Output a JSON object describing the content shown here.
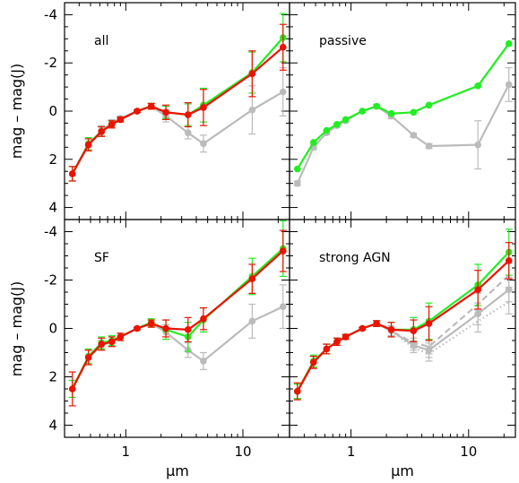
{
  "chart_data": {
    "type": "line",
    "xlabel": "μm",
    "ylabel": "mag – mag(J)",
    "xscale": "log",
    "xlim": [
      0.3,
      25
    ],
    "ylim": [
      -4.5,
      4.5
    ],
    "y_inverted": true,
    "xticks": [
      1,
      10
    ],
    "xtick_labels": [
      "1",
      "10"
    ],
    "yticks": [
      -4,
      -2,
      0,
      2,
      4
    ],
    "ytick_labels": [
      "-4",
      "-2",
      "0",
      "2",
      "4"
    ],
    "colors": {
      "green": "#22ee22",
      "red": "#ee1100",
      "gray": "#bbbbbb"
    },
    "panels": [
      {
        "title": "all",
        "position": "top-left",
        "series": [
          {
            "color": "gray",
            "style": "solid",
            "x": [
              0.35,
              0.48,
              0.62,
              0.76,
              0.9,
              1.25,
              1.65,
              2.2,
              3.4,
              4.6,
              12,
              22
            ],
            "y": [
              2.6,
              1.4,
              0.8,
              0.5,
              0.3,
              0.0,
              -0.2,
              0.2,
              0.9,
              1.35,
              -0.05,
              -0.8
            ],
            "err": [
              0.3,
              0.25,
              0.2,
              0.15,
              0.1,
              0.05,
              0.12,
              0.25,
              0.25,
              0.35,
              1.0,
              1.0
            ]
          },
          {
            "color": "green",
            "style": "solid",
            "x": [
              0.35,
              0.48,
              0.62,
              0.76,
              0.9,
              1.25,
              1.65,
              2.2,
              3.4,
              4.6,
              12,
              22
            ],
            "y": [
              2.6,
              1.35,
              0.85,
              0.55,
              0.35,
              0.0,
              -0.2,
              0.05,
              0.15,
              -0.25,
              -1.6,
              -3.05
            ],
            "err": [
              0.3,
              0.25,
              0.2,
              0.15,
              0.1,
              0.05,
              0.12,
              0.25,
              0.45,
              0.7,
              0.85,
              1.0
            ]
          },
          {
            "color": "red",
            "style": "solid",
            "x": [
              0.35,
              0.48,
              0.62,
              0.76,
              0.9,
              1.25,
              1.65,
              2.2,
              3.4,
              4.6,
              12,
              22
            ],
            "y": [
              2.6,
              1.4,
              0.85,
              0.55,
              0.35,
              0.0,
              -0.2,
              0.05,
              0.15,
              -0.15,
              -1.55,
              -2.65
            ],
            "err": [
              0.3,
              0.25,
              0.2,
              0.15,
              0.1,
              0.05,
              0.12,
              0.3,
              0.5,
              0.75,
              0.95,
              0.95
            ]
          }
        ]
      },
      {
        "title": "passive",
        "position": "top-right",
        "series": [
          {
            "color": "gray",
            "style": "solid",
            "x": [
              0.35,
              0.48,
              0.62,
              0.76,
              0.9,
              1.25,
              1.65,
              2.2,
              3.4,
              4.6,
              12,
              22
            ],
            "y": [
              3.0,
              1.5,
              0.9,
              0.6,
              0.4,
              0.0,
              -0.2,
              0.2,
              1.0,
              1.45,
              1.4,
              -1.1
            ],
            "err": [
              0.1,
              0.1,
              0.08,
              0.08,
              0.06,
              0.04,
              0.08,
              0.12,
              0.08,
              0.1,
              1.0,
              0.7
            ]
          },
          {
            "color": "green",
            "style": "solid",
            "x": [
              0.35,
              0.48,
              0.62,
              0.76,
              0.9,
              1.25,
              1.65,
              2.2,
              3.4,
              4.6,
              12,
              22
            ],
            "y": [
              2.4,
              1.3,
              0.8,
              0.55,
              0.35,
              0.0,
              -0.2,
              0.1,
              0.05,
              -0.25,
              -1.05,
              -2.8
            ],
            "err": [
              0.0,
              0.0,
              0.0,
              0.0,
              0.0,
              0.0,
              0.0,
              0.0,
              0.0,
              0.0,
              0.0,
              0.0
            ]
          }
        ]
      },
      {
        "title": "SF",
        "position": "bottom-left",
        "series": [
          {
            "color": "gray",
            "style": "solid",
            "x": [
              0.35,
              0.48,
              0.62,
              0.76,
              0.9,
              1.25,
              1.65,
              2.2,
              3.4,
              4.6,
              12,
              22
            ],
            "y": [
              2.5,
              1.2,
              0.7,
              0.55,
              0.35,
              0.0,
              -0.2,
              0.15,
              0.9,
              1.35,
              -0.3,
              -0.9
            ],
            "err": [
              0.35,
              0.3,
              0.2,
              0.2,
              0.15,
              0.05,
              0.15,
              0.3,
              0.3,
              0.35,
              0.7,
              0.9
            ]
          },
          {
            "color": "green",
            "style": "solid",
            "x": [
              0.35,
              0.48,
              0.62,
              0.76,
              0.9,
              1.25,
              1.65,
              2.2,
              3.4,
              4.6,
              12,
              22
            ],
            "y": [
              2.5,
              1.15,
              0.6,
              0.5,
              0.35,
              0.0,
              -0.25,
              0.05,
              0.35,
              -0.35,
              -2.15,
              -3.3
            ],
            "err": [
              0.35,
              0.3,
              0.25,
              0.2,
              0.15,
              0.05,
              0.15,
              0.4,
              0.6,
              0.5,
              0.75,
              1.15
            ]
          },
          {
            "color": "red",
            "style": "solid",
            "x": [
              0.35,
              0.48,
              0.62,
              0.76,
              0.9,
              1.25,
              1.65,
              2.2,
              3.4,
              4.6,
              12,
              22
            ],
            "y": [
              2.5,
              1.2,
              0.65,
              0.55,
              0.35,
              0.0,
              -0.2,
              0.0,
              0.05,
              -0.4,
              -2.05,
              -3.2
            ],
            "err": [
              0.7,
              0.3,
              0.25,
              0.2,
              0.15,
              0.05,
              0.15,
              0.35,
              0.5,
              0.45,
              0.6,
              0.85
            ]
          }
        ]
      },
      {
        "title": "strong AGN",
        "position": "bottom-right",
        "series": [
          {
            "color": "gray",
            "style": "solid",
            "x": [
              0.35,
              0.48,
              0.62,
              0.76,
              0.9,
              1.25,
              1.65,
              2.2,
              3.4,
              4.6,
              12,
              22
            ],
            "y": [
              2.6,
              1.4,
              0.85,
              0.55,
              0.35,
              0.0,
              -0.2,
              0.1,
              0.7,
              0.9,
              -0.6,
              -1.6
            ],
            "err": [
              0.3,
              0.25,
              0.2,
              0.15,
              0.1,
              0.05,
              0.12,
              0.2,
              0.2,
              0.3,
              0.45,
              0.5
            ]
          },
          {
            "color": "gray",
            "style": "dashed",
            "x": [
              0.35,
              0.48,
              0.62,
              0.76,
              0.9,
              1.25,
              1.65,
              2.2,
              3.4,
              4.6,
              12,
              22
            ],
            "y": [
              2.6,
              1.4,
              0.85,
              0.55,
              0.35,
              0.0,
              -0.2,
              0.1,
              0.6,
              0.75,
              -1.0,
              -2.2
            ],
            "err": [
              0.3,
              0.25,
              0.2,
              0.15,
              0.1,
              0.05,
              0.12,
              0.2,
              0.2,
              0.3,
              0.45,
              0.5
            ]
          },
          {
            "color": "gray",
            "style": "dotted",
            "x": [
              0.35,
              0.48,
              0.62,
              0.76,
              0.9,
              1.25,
              1.65,
              2.2,
              3.4,
              4.6,
              12,
              22
            ],
            "y": [
              2.6,
              1.4,
              0.85,
              0.55,
              0.35,
              0.0,
              -0.2,
              0.1,
              0.8,
              1.05,
              -0.3,
              -1.1
            ],
            "err": [
              0.3,
              0.25,
              0.2,
              0.15,
              0.1,
              0.05,
              0.12,
              0.2,
              0.2,
              0.3,
              0.45,
              0.5
            ]
          },
          {
            "color": "green",
            "style": "solid",
            "x": [
              0.35,
              0.48,
              0.62,
              0.76,
              0.9,
              1.25,
              1.65,
              2.2,
              3.4,
              4.6,
              12,
              22
            ],
            "y": [
              2.6,
              1.35,
              0.85,
              0.55,
              0.35,
              0.0,
              -0.2,
              0.05,
              0.05,
              -0.3,
              -1.8,
              -3.15
            ],
            "err": [
              0.3,
              0.25,
              0.2,
              0.15,
              0.1,
              0.05,
              0.12,
              0.3,
              0.5,
              0.75,
              0.85,
              0.95
            ]
          },
          {
            "color": "red",
            "style": "solid",
            "x": [
              0.35,
              0.48,
              0.62,
              0.76,
              0.9,
              1.25,
              1.65,
              2.2,
              3.4,
              4.6,
              12,
              22
            ],
            "y": [
              2.6,
              1.4,
              0.85,
              0.55,
              0.35,
              0.0,
              -0.2,
              0.05,
              0.1,
              -0.2,
              -1.6,
              -2.8
            ],
            "err": [
              0.35,
              0.25,
              0.2,
              0.15,
              0.1,
              0.05,
              0.12,
              0.3,
              0.45,
              0.7,
              0.8,
              0.75
            ]
          }
        ]
      }
    ]
  }
}
